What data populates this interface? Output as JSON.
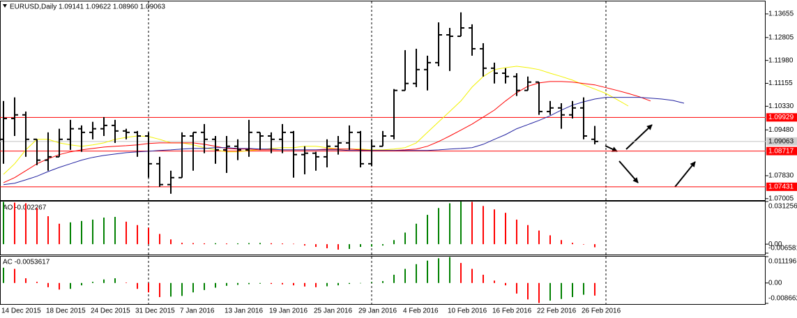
{
  "chart_data": [
    {
      "type": "ohlc",
      "title": "EURUSD,Daily  1.09141 1.09622 1.08960 1.09063",
      "categories": [
        "14 Dec 2015",
        null,
        null,
        null,
        "18 Dec 2015",
        null,
        null,
        null,
        "24 Dec 2015",
        null,
        null,
        null,
        "31 Dec 2015",
        null,
        null,
        null,
        "7 Jan 2016",
        null,
        null,
        null,
        "13 Jan 2016",
        null,
        null,
        null,
        "19 Jan 2016",
        null,
        null,
        null,
        "25 Jan 2016",
        null,
        null,
        null,
        "29 Jan 2016",
        null,
        null,
        null,
        "4 Feb 2016",
        null,
        null,
        null,
        "10 Feb 2016",
        null,
        null,
        null,
        "16 Feb 2016",
        null,
        null,
        null,
        "22 Feb 2016",
        null,
        null,
        null,
        "26 Feb 2016",
        null,
        null,
        null,
        null,
        null,
        null,
        null,
        null,
        null
      ],
      "open": [
        1.0914,
        1.0989,
        1.1002,
        1.0914,
        1.0839,
        1.0851,
        1.0914,
        1.0952,
        1.0939,
        1.0952,
        1.0964,
        1.0944,
        1.0939,
        1.0926,
        1.0826,
        1.0751,
        1.0776,
        1.0926,
        1.0939,
        1.0914,
        1.0876,
        1.0889,
        1.0876,
        1.0939,
        1.0926,
        1.0914,
        1.0939,
        1.0859,
        1.0864,
        1.0851,
        1.0889,
        1.0901,
        1.0939,
        1.0826,
        1.0889,
        1.0926,
        1.109,
        1.1115,
        1.1165,
        1.119,
        1.129,
        1.1285,
        1.1315,
        1.124,
        1.117,
        1.1152,
        1.114,
        1.109,
        1.112,
        1.1014,
        1.1027,
        1.1002,
        1.1027,
        1.09141,
        null,
        null,
        null,
        null,
        null,
        null,
        null,
        null
      ],
      "high": [
        1.1052,
        1.1065,
        1.1014,
        1.0914,
        1.0939,
        1.0952,
        1.0984,
        1.0964,
        1.0977,
        1.0994,
        1.0984,
        1.0952,
        1.0944,
        1.0939,
        1.0851,
        1.0801,
        1.0939,
        1.0939,
        1.0969,
        1.0926,
        1.0926,
        1.0914,
        1.0984,
        1.0939,
        1.0939,
        1.0969,
        1.0944,
        1.0889,
        1.0869,
        1.0914,
        1.0926,
        1.0964,
        1.0944,
        1.0914,
        1.0944,
        1.1095,
        1.1235,
        1.124,
        1.1215,
        1.1335,
        1.1315,
        1.1371,
        1.1328,
        1.126,
        1.119,
        1.117,
        1.1152,
        1.114,
        1.112,
        1.1052,
        1.1044,
        1.1052,
        1.1065,
        1.09622,
        null,
        null,
        null,
        null,
        null,
        null,
        null,
        null
      ],
      "low": [
        1.0826,
        1.0926,
        1.0851,
        1.0821,
        1.0801,
        1.0851,
        1.0876,
        1.0869,
        1.0914,
        1.0926,
        1.0901,
        1.0914,
        1.0851,
        1.0776,
        1.0743,
        1.0718,
        1.0776,
        1.0801,
        1.0864,
        1.0826,
        1.0793,
        1.0839,
        1.0851,
        1.0876,
        1.0864,
        1.0864,
        1.0776,
        1.0788,
        1.0801,
        1.0813,
        1.0859,
        1.0876,
        1.0813,
        1.0818,
        1.0889,
        1.0914,
        1.109,
        1.1102,
        1.109,
        1.1177,
        1.116,
        1.1285,
        1.1215,
        1.114,
        1.1115,
        1.1115,
        1.107,
        1.109,
        1.1002,
        1.1002,
        1.0952,
        1.0989,
        1.0914,
        1.0896,
        null,
        null,
        null,
        null,
        null,
        null,
        null,
        null
      ],
      "close": [
        1.0989,
        1.1002,
        1.0914,
        1.0839,
        1.0851,
        1.0914,
        1.0952,
        1.0939,
        1.0952,
        1.0964,
        1.0944,
        1.0939,
        1.0926,
        1.0826,
        1.0751,
        1.0776,
        1.0926,
        1.0939,
        1.0914,
        1.0876,
        1.0889,
        1.0876,
        1.0939,
        1.0926,
        1.0914,
        1.0939,
        1.0859,
        1.0864,
        1.0851,
        1.0889,
        1.0901,
        1.0939,
        1.0826,
        1.0889,
        1.0926,
        1.109,
        1.1115,
        1.1165,
        1.119,
        1.129,
        1.1285,
        1.1315,
        1.124,
        1.117,
        1.1152,
        1.114,
        1.109,
        1.112,
        1.1014,
        1.1027,
        1.1002,
        1.1027,
        1.0926,
        1.09063,
        null,
        null,
        null,
        null,
        null,
        null,
        null,
        null
      ],
      "color": "#000000",
      "series": [
        {
          "color": "#f2f200",
          "values": [
            1.0788,
            1.0826,
            1.0876,
            1.0914,
            1.0914,
            1.0901,
            1.0894,
            1.0889,
            1.0894,
            1.0901,
            1.0914,
            1.0921,
            1.0926,
            1.0924,
            1.0914,
            1.0901,
            1.0901,
            1.0894,
            1.0884,
            1.0876,
            1.0869,
            1.0869,
            1.0874,
            1.0876,
            1.0881,
            1.0884,
            1.0884,
            1.0889,
            1.0889,
            1.0884,
            1.0879,
            1.0879,
            1.0879,
            1.0876,
            1.0876,
            1.0879,
            1.0884,
            1.0901,
            1.0939,
            1.0977,
            1.1014,
            1.1052,
            1.1102,
            1.114,
            1.1165,
            1.1172,
            1.1177,
            1.1172,
            1.1165,
            1.1152,
            1.114,
            1.1127,
            1.111,
            1.1095,
            1.1079,
            1.1057,
            1.1034,
            null,
            null,
            null,
            null,
            null
          ]
        },
        {
          "color": "#ff0000",
          "values": [
            1.0758,
            1.0776,
            1.0801,
            1.0826,
            1.0844,
            1.0859,
            1.0869,
            1.0876,
            1.0881,
            1.0886,
            1.0889,
            1.0891,
            1.0894,
            1.0899,
            1.0901,
            1.0901,
            1.0901,
            1.0901,
            1.0896,
            1.0889,
            1.0881,
            1.0879,
            1.0879,
            1.0876,
            1.0876,
            1.0876,
            1.0876,
            1.0876,
            1.0876,
            1.0879,
            1.0879,
            1.0879,
            1.0876,
            1.0874,
            1.0874,
            1.0874,
            1.0876,
            1.0879,
            1.0889,
            1.0906,
            1.0926,
            1.0947,
            1.0969,
            1.0994,
            1.1019,
            1.1052,
            1.1082,
            1.1105,
            1.1117,
            1.1122,
            1.1122,
            1.112,
            1.1115,
            1.111,
            1.11,
            1.109,
            1.1079,
            1.1067,
            1.1052,
            null,
            null,
            null
          ]
        },
        {
          "color": "#2020a0",
          "values": [
            1.0751,
            1.0756,
            1.0768,
            1.0781,
            1.0798,
            1.0813,
            1.0826,
            1.0839,
            1.0849,
            1.0856,
            1.0861,
            1.0866,
            1.0869,
            1.0871,
            1.0874,
            1.0876,
            1.0879,
            1.0881,
            1.0881,
            1.0884,
            1.0884,
            1.0881,
            1.0881,
            1.0879,
            1.0879,
            1.0876,
            1.0876,
            1.0876,
            1.0876,
            1.0876,
            1.0876,
            1.0874,
            1.0874,
            1.0874,
            1.0874,
            1.0874,
            1.0874,
            1.0874,
            1.0874,
            1.0876,
            1.0879,
            1.0881,
            1.0884,
            1.0896,
            1.0914,
            1.0931,
            1.0952,
            1.0967,
            1.0982,
            1.0999,
            1.1019,
            1.1037,
            1.1049,
            1.1059,
            1.1065,
            1.1065,
            1.1065,
            1.1065,
            1.1062,
            1.1059,
            1.1054,
            1.1044
          ]
        }
      ],
      "ylim": [
        1.0695,
        1.1408
      ],
      "yticks": [
        1.13655,
        1.12805,
        {
          "value": 1.1198,
          "label": "1.11980"
        },
        1.11155,
        {
          "value": 1.1033,
          "label": "1.10330"
        },
        {
          "value": 1.0948,
          "label": "1.09480"
        },
        {
          "value": 1.0783,
          "label": "1.07830"
        },
        1.07005
      ],
      "levels": [
        1.09929,
        1.08717,
        1.07431
      ],
      "level_color": "#ff0000",
      "last_price": 1.09063,
      "grid": false
    },
    {
      "type": "bar",
      "title": "AO -0.002267",
      "values": [
        0.031,
        0.0305,
        0.03,
        0.0265,
        0.0205,
        0.015,
        0.016,
        0.017,
        0.018,
        0.0195,
        0.02,
        0.0165,
        0.014,
        0.012,
        0.0075,
        0.0035,
        0.001,
        0.0008,
        0.0006,
        0.0007,
        0.0005,
        0.0006,
        0.0008,
        0.0009,
        0.0007,
        0.0005,
        0.0003,
        -0.001,
        -0.002,
        -0.003,
        -0.004,
        -0.0035,
        -0.002,
        -0.0018,
        -0.001,
        0.003,
        0.0085,
        0.015,
        0.0215,
        0.0265,
        0.03,
        0.0312,
        0.031,
        0.028,
        0.0255,
        0.023,
        0.018,
        0.014,
        0.01,
        0.0065,
        0.003,
        0.001,
        -0.0003,
        -0.002267
      ],
      "up_color": "#008000",
      "down_color": "#ff0000",
      "ylim": [
        -0.006581,
        0.031256
      ],
      "yticks": [
        0.031256,
        {
          "value": 0,
          "label": "0.00"
        },
        -0.006581
      ]
    },
    {
      "type": "bar",
      "title": "AC -0.0053617",
      "values": [
        0.0065,
        0.006,
        0.002,
        0.0005,
        -0.0018,
        -0.0028,
        -0.0025,
        -0.001,
        0.0005,
        0.0015,
        0.002,
        0.0002,
        -0.0025,
        -0.004,
        -0.006,
        -0.0058,
        -0.0055,
        -0.004,
        -0.003,
        -0.002,
        -0.0012,
        -0.0008,
        -0.0005,
        -0.0003,
        -0.0004,
        -0.0006,
        -0.001,
        -0.0015,
        -0.0018,
        -0.0014,
        -0.001,
        -0.0004,
        0,
        0.0004,
        0.0008,
        0.0035,
        0.006,
        0.008,
        0.0095,
        0.0105,
        0.011,
        0.0085,
        0.006,
        0.0035,
        0.001,
        -0.001,
        -0.0045,
        -0.007,
        -0.0085,
        -0.0075,
        -0.0068,
        -0.006,
        -0.005,
        -0.0053617
      ],
      "up_color": "#008000",
      "down_color": "#ff0000",
      "ylim": [
        -0.008662,
        0.011196
      ],
      "yticks": [
        0.011196,
        {
          "value": 0,
          "label": "0.00"
        },
        -0.008662
      ]
    }
  ]
}
